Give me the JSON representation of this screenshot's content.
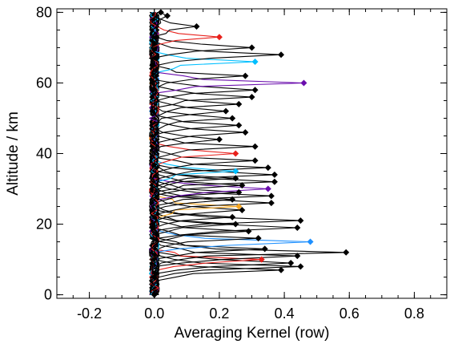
{
  "chart_data": {
    "type": "line",
    "title": "",
    "xlabel": "Averaging Kernel (row)",
    "ylabel": "Altitude / km",
    "xlim": [
      -0.3,
      0.9
    ],
    "ylim": [
      -1,
      81
    ],
    "x_ticks": [
      -0.2,
      0.0,
      0.2,
      0.4,
      0.6,
      0.8
    ],
    "x_tick_labels": [
      "-0.2",
      "0.0",
      "0.2",
      "0.4",
      "0.6",
      "0.8"
    ],
    "y_ticks": [
      0,
      20,
      40,
      60,
      80
    ],
    "y_tick_labels": [
      "0",
      "20",
      "40",
      "60",
      "80"
    ],
    "grid": false,
    "legend": "none",
    "peak_marker": "diamond",
    "altitude_grid": [
      0,
      1,
      2,
      3,
      4,
      5,
      6,
      7,
      8,
      9,
      10,
      11,
      12,
      13,
      14,
      15,
      16,
      17,
      18,
      19,
      20,
      21,
      22,
      23,
      24,
      25,
      26,
      27,
      28,
      29,
      30,
      31,
      32,
      33,
      34,
      35,
      36,
      37,
      38,
      39,
      40,
      41,
      42,
      43,
      44,
      45,
      46,
      47,
      48,
      49,
      50,
      51,
      52,
      53,
      54,
      55,
      56,
      57,
      58,
      59,
      60,
      61,
      62,
      63,
      64,
      65,
      66,
      67,
      68,
      69,
      70,
      71,
      72,
      73,
      74,
      75,
      76,
      77,
      78,
      79,
      80
    ],
    "series": [
      {
        "color": "#000000",
        "peak_altitude": 0,
        "peak_value": 0.0
      },
      {
        "color": "#000000",
        "peak_altitude": 5,
        "peak_value": 0.0
      },
      {
        "color": "#000000",
        "peak_altitude": 7,
        "peak_value": 0.39
      },
      {
        "color": "#000000",
        "peak_altitude": 8,
        "peak_value": 0.45
      },
      {
        "color": "#000000",
        "peak_altitude": 9,
        "peak_value": 0.42
      },
      {
        "color": "#e8211c",
        "peak_altitude": 10,
        "peak_value": 0.33
      },
      {
        "color": "#000000",
        "peak_altitude": 11,
        "peak_value": 0.44
      },
      {
        "color": "#000000",
        "peak_altitude": 12,
        "peak_value": 0.59
      },
      {
        "color": "#000000",
        "peak_altitude": 13,
        "peak_value": 0.34
      },
      {
        "color": "#1e90ff",
        "peak_altitude": 15,
        "peak_value": 0.48
      },
      {
        "color": "#000000",
        "peak_altitude": 16,
        "peak_value": 0.32
      },
      {
        "color": "#000000",
        "peak_altitude": 18,
        "peak_value": 0.29
      },
      {
        "color": "#000000",
        "peak_altitude": 19,
        "peak_value": 0.44
      },
      {
        "color": "#000000",
        "peak_altitude": 20,
        "peak_value": 0.25
      },
      {
        "color": "#000000",
        "peak_altitude": 21,
        "peak_value": 0.45
      },
      {
        "color": "#000000",
        "peak_altitude": 22,
        "peak_value": 0.24
      },
      {
        "color": "#000000",
        "peak_altitude": 24,
        "peak_value": 0.27
      },
      {
        "color": "#f5a623",
        "peak_altitude": 25,
        "peak_value": 0.26
      },
      {
        "color": "#000000",
        "peak_altitude": 26,
        "peak_value": 0.36
      },
      {
        "color": "#000000",
        "peak_altitude": 27,
        "peak_value": 0.24
      },
      {
        "color": "#000000",
        "peak_altitude": 28,
        "peak_value": 0.36
      },
      {
        "color": "#000000",
        "peak_altitude": 29,
        "peak_value": 0.26
      },
      {
        "color": "#6a0dad",
        "peak_altitude": 30,
        "peak_value": 0.35
      },
      {
        "color": "#000000",
        "peak_altitude": 31,
        "peak_value": 0.27
      },
      {
        "color": "#000000",
        "peak_altitude": 32,
        "peak_value": 0.37
      },
      {
        "color": "#000000",
        "peak_altitude": 33,
        "peak_value": 0.25
      },
      {
        "color": "#000000",
        "peak_altitude": 34,
        "peak_value": 0.37
      },
      {
        "color": "#00bfff",
        "peak_altitude": 35,
        "peak_value": 0.25
      },
      {
        "color": "#000000",
        "peak_altitude": 36,
        "peak_value": 0.35
      },
      {
        "color": "#000000",
        "peak_altitude": 38,
        "peak_value": 0.31
      },
      {
        "color": "#e8211c",
        "peak_altitude": 40,
        "peak_value": 0.25
      },
      {
        "color": "#000000",
        "peak_altitude": 42,
        "peak_value": 0.31
      },
      {
        "color": "#000000",
        "peak_altitude": 44,
        "peak_value": 0.2
      },
      {
        "color": "#000000",
        "peak_altitude": 46,
        "peak_value": 0.28
      },
      {
        "color": "#000000",
        "peak_altitude": 48,
        "peak_value": 0.26
      },
      {
        "color": "#000000",
        "peak_altitude": 50,
        "peak_value": 0.24
      },
      {
        "color": "#000000",
        "peak_altitude": 52,
        "peak_value": 0.22
      },
      {
        "color": "#000000",
        "peak_altitude": 54,
        "peak_value": 0.26
      },
      {
        "color": "#000000",
        "peak_altitude": 56,
        "peak_value": 0.3
      },
      {
        "color": "#000000",
        "peak_altitude": 58,
        "peak_value": 0.31
      },
      {
        "color": "#6a0dad",
        "peak_altitude": 60,
        "peak_value": 0.46
      },
      {
        "color": "#000000",
        "peak_altitude": 62,
        "peak_value": 0.28
      },
      {
        "color": "#00bfff",
        "peak_altitude": 66,
        "peak_value": 0.31
      },
      {
        "color": "#000000",
        "peak_altitude": 68,
        "peak_value": 0.39
      },
      {
        "color": "#000000",
        "peak_altitude": 70,
        "peak_value": 0.3
      },
      {
        "color": "#e8211c",
        "peak_altitude": 73,
        "peak_value": 0.2
      },
      {
        "color": "#000000",
        "peak_altitude": 76,
        "peak_value": 0.13
      },
      {
        "color": "#000000",
        "peak_altitude": 79,
        "peak_value": 0.04
      },
      {
        "color": "#000000",
        "peak_altitude": 80,
        "peak_value": 0.02
      }
    ]
  }
}
